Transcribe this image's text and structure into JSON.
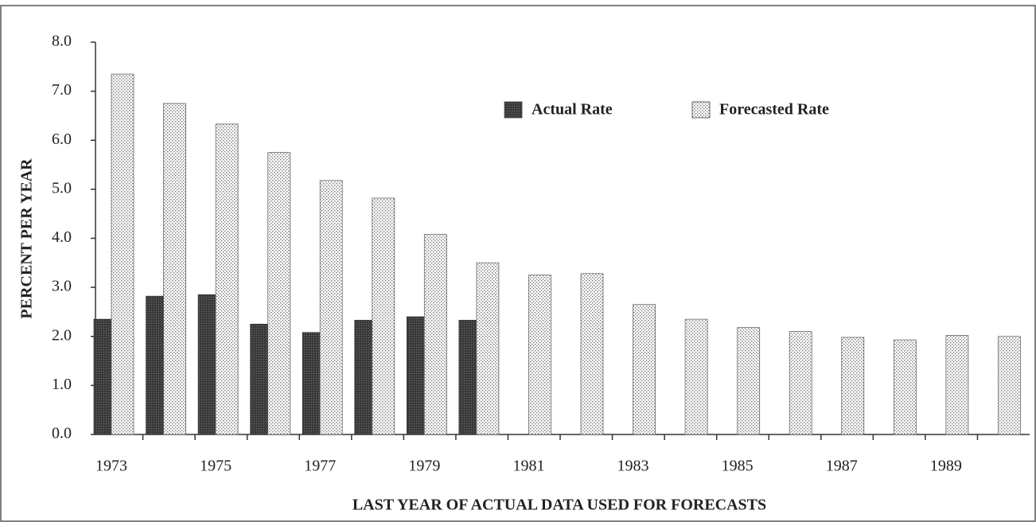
{
  "chart_data": {
    "type": "bar",
    "y_label": "PERCENT PER YEAR",
    "x_label": "LAST YEAR OF ACTUAL DATA USED FOR FORECASTS",
    "categories": [
      "1973",
      null,
      "1975",
      null,
      "1977",
      null,
      "1979",
      null,
      "1981",
      null,
      "1983",
      null,
      "1985",
      null,
      "1987",
      null,
      "1989",
      null
    ],
    "series": [
      {
        "name": "Actual Rate",
        "color": "#4a4a4a",
        "values": [
          2.35,
          2.82,
          2.85,
          2.25,
          2.08,
          2.33,
          2.4,
          2.33,
          null,
          null,
          null,
          null,
          null,
          null,
          null,
          null,
          null,
          null
        ]
      },
      {
        "name": "Forecasted Rate",
        "color": "#e2e2e2",
        "values": [
          7.35,
          6.75,
          6.33,
          5.75,
          5.18,
          4.82,
          4.08,
          3.5,
          3.25,
          3.28,
          2.65,
          2.35,
          2.18,
          2.1,
          1.98,
          1.93,
          2.02,
          2.0
        ]
      }
    ],
    "ylim": [
      0,
      8
    ],
    "yticks": [
      {
        "value": 0,
        "label": "0.0"
      },
      {
        "value": 1,
        "label": "1.0"
      },
      {
        "value": 2,
        "label": "2.0"
      },
      {
        "value": 3,
        "label": "3.0"
      },
      {
        "value": 4,
        "label": "4.0"
      },
      {
        "value": 5,
        "label": "5.0"
      },
      {
        "value": 6,
        "label": "6.0"
      },
      {
        "value": 7,
        "label": "7.0"
      },
      {
        "value": 8,
        "label": "8.0"
      }
    ]
  }
}
